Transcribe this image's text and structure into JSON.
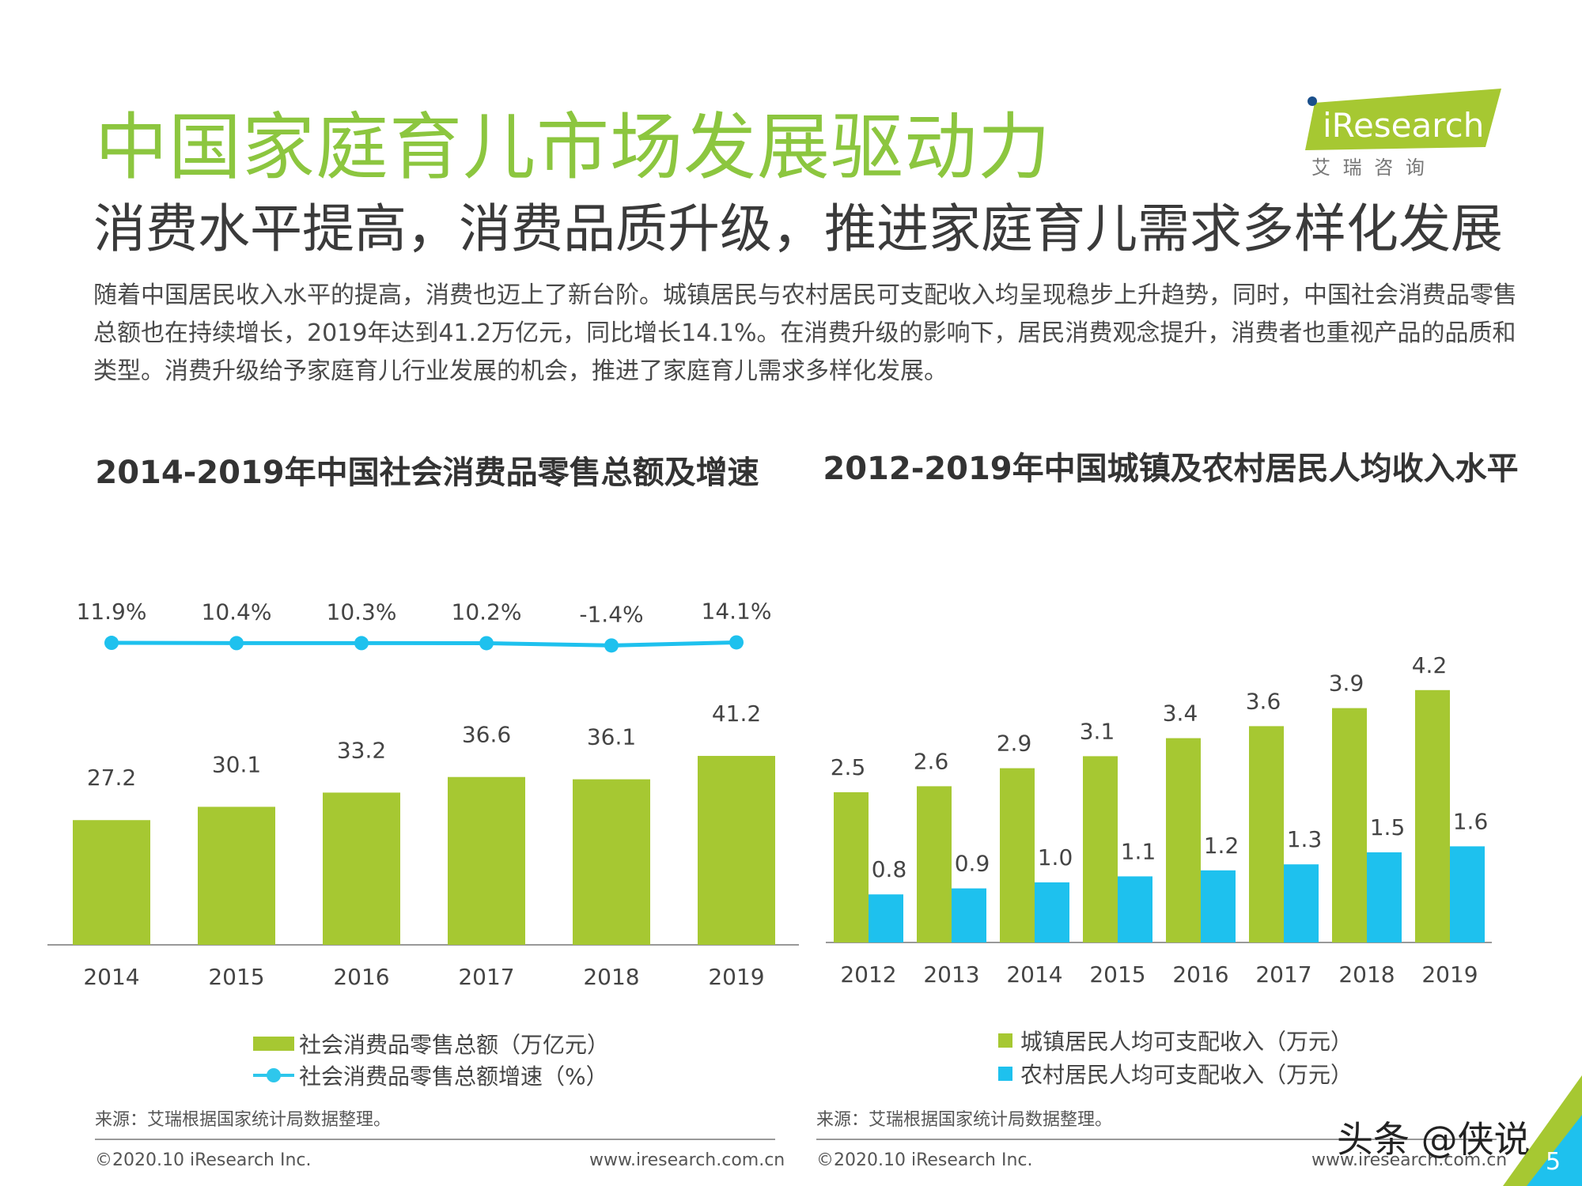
{
  "header": {
    "title": "中国家庭育儿市场发展驱动力",
    "subtitle": "消费水平提高，消费品质升级，推进家庭育儿需求多样化发展",
    "description": "随着中国居民收入水平的提高，消费也迈上了新台阶。城镇居民与农村居民可支配收入均呈现稳步上升趋势，同时，中国社会消费品零售总额也在持续增长，2019年达到41.2万亿元，同比增长14.1%。在消费升级的影响下，居民消费观念提升，消费者也重视产品的品质和类型。消费升级给予家庭育儿行业发展的机会，推进了家庭育儿需求多样化发展。"
  },
  "logo": {
    "brand": "iResearch",
    "cn": "艾 瑞 咨 询"
  },
  "colors": {
    "green": "#a6c832",
    "blue": "#1ec1ee",
    "title_green": "#8cc63f"
  },
  "chart_data": [
    {
      "type": "bar",
      "title": "2014-2019年中国社会消费品零售总额及增速",
      "categories": [
        "2014",
        "2015",
        "2016",
        "2017",
        "2018",
        "2019"
      ],
      "series": [
        {
          "name": "社会消费品零售总额（万亿元）",
          "type": "bar",
          "values": [
            27.2,
            30.1,
            33.2,
            36.6,
            36.1,
            41.2
          ],
          "labels": [
            "27.2",
            "30.1",
            "33.2",
            "36.6",
            "36.1",
            "41.2"
          ]
        },
        {
          "name": "社会消费品零售总额增速（%）",
          "type": "line",
          "values": [
            11.9,
            10.4,
            10.3,
            10.2,
            -1.4,
            14.1
          ],
          "labels": [
            "11.9%",
            "10.4%",
            "10.3%",
            "10.2%",
            "-1.4%",
            "14.1%"
          ]
        }
      ],
      "legend_position": "bottom",
      "grid": false
    },
    {
      "type": "bar",
      "title": "2012-2019年中国城镇及农村居民人均收入水平",
      "categories": [
        "2012",
        "2013",
        "2014",
        "2015",
        "2016",
        "2017",
        "2018",
        "2019"
      ],
      "series": [
        {
          "name": "城镇居民人均可支配收入（万元）",
          "values": [
            2.5,
            2.6,
            2.9,
            3.1,
            3.4,
            3.6,
            3.9,
            4.2
          ],
          "labels": [
            "2.5",
            "2.6",
            "2.9",
            "3.1",
            "3.4",
            "3.6",
            "3.9",
            "4.2"
          ]
        },
        {
          "name": "农村居民人均可支配收入（万元）",
          "values": [
            0.8,
            0.9,
            1.0,
            1.1,
            1.2,
            1.3,
            1.5,
            1.6
          ],
          "labels": [
            "0.8",
            "0.9",
            "1.0",
            "1.1",
            "1.2",
            "1.3",
            "1.5",
            "1.6"
          ]
        }
      ],
      "legend_position": "bottom",
      "grid": false
    }
  ],
  "sources": {
    "left": "来源：艾瑞根据国家统计局数据整理。",
    "right": "来源：艾瑞根据国家统计局数据整理。"
  },
  "footer": {
    "copyright_left": "©2020.10 iResearch Inc.",
    "url_left": "www.iresearch.com.cn",
    "copyright_right": "©2020.10 iResearch Inc.",
    "url_right": "www.iresearch.com.cn",
    "page_number": "5",
    "watermark": "头条 @侠说"
  }
}
